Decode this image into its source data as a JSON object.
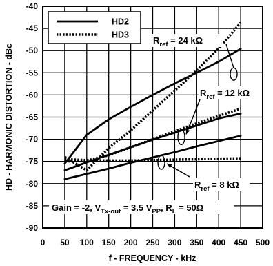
{
  "chart_data": {
    "type": "line",
    "xlabel": "f - FREQUENCY - kHz",
    "ylabel": "HD - HARMONIC DISTORTION - dBc",
    "xlim": [
      0,
      500
    ],
    "ylim": [
      -90,
      -40
    ],
    "xticks": [
      0,
      50,
      100,
      150,
      200,
      250,
      300,
      350,
      400,
      450,
      500
    ],
    "yticks": [
      -40,
      -45,
      -50,
      -55,
      -60,
      -65,
      -70,
      -75,
      -80,
      -85,
      -90
    ],
    "grid": true,
    "legend_position": "top-left",
    "legend": [
      {
        "name": "HD2",
        "style": "solid"
      },
      {
        "name": "HD3",
        "style": "dotted"
      }
    ],
    "series": [
      {
        "name": "HD2",
        "rref": "24 kΩ",
        "style": "solid",
        "x": [
          50,
          100,
          150,
          200,
          250,
          300,
          350,
          400,
          450
        ],
        "y": [
          -75.5,
          -69,
          -65.5,
          -62.7,
          -60,
          -57.4,
          -55,
          -52.5,
          -49.6
        ]
      },
      {
        "name": "HD3",
        "rref": "24 kΩ",
        "style": "dotted",
        "x": [
          50,
          100,
          150,
          200,
          250,
          300,
          350,
          400,
          450
        ],
        "y": [
          -74,
          -77,
          -72,
          -68,
          -63.5,
          -59,
          -54.5,
          -49.5,
          -43.7
        ]
      },
      {
        "name": "HD2",
        "rref": "12 kΩ",
        "style": "solid",
        "x": [
          50,
          100,
          150,
          200,
          250,
          300,
          350,
          400,
          450
        ],
        "y": [
          -77,
          -75.2,
          -73.5,
          -71.8,
          -70.1,
          -68.5,
          -66.9,
          -65.3,
          -64.2
        ]
      },
      {
        "name": "HD3",
        "rref": "12 kΩ",
        "style": "dotted",
        "x": [
          50,
          100,
          150,
          200,
          250,
          300,
          350,
          400,
          450
        ],
        "y": [
          -75,
          -74.8,
          -73.6,
          -71.8,
          -70,
          -68.2,
          -66.4,
          -64.7,
          -63.1
        ]
      },
      {
        "name": "HD2",
        "rref": "8 kΩ",
        "style": "solid",
        "x": [
          50,
          100,
          150,
          200,
          250,
          300,
          350,
          400,
          450
        ],
        "y": [
          -79,
          -77.8,
          -76.6,
          -75.3,
          -74.1,
          -72.9,
          -71.6,
          -70.4,
          -69.2
        ]
      },
      {
        "name": "HD3",
        "rref": "8 kΩ",
        "style": "dotted",
        "x": [
          50,
          100,
          150,
          200,
          250,
          300,
          350,
          400,
          450
        ],
        "y": [
          -74.5,
          -74.7,
          -74.8,
          -74.8,
          -74.7,
          -74.6,
          -74.5,
          -74.4,
          -74.3
        ]
      }
    ],
    "annotations": {
      "r24": {
        "prefix": "R",
        "sub": "ref",
        "value": " = 24 kΩ"
      },
      "r12": {
        "prefix": "R",
        "sub": "ref",
        "value": " = 12 kΩ"
      },
      "r8": {
        "prefix": "R",
        "sub": "ref",
        "value": " = 8 kΩ"
      },
      "conditions": {
        "part1": "Gain = -2, V",
        "sub1": "Tx-out",
        "part2": " = 3.5 V",
        "sub2": "PP",
        "part3": ", R",
        "sub3": "L",
        "part4": " = 50Ω"
      }
    }
  }
}
